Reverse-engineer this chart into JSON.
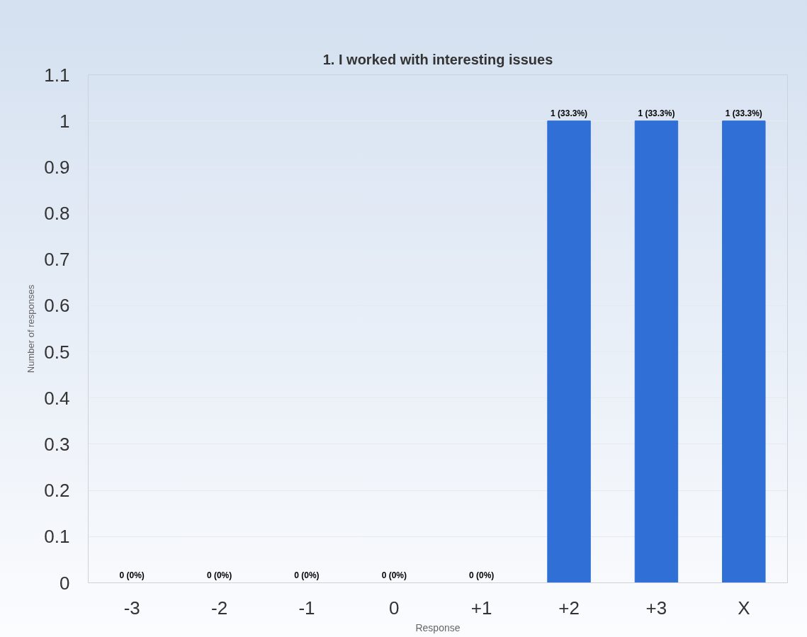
{
  "chart_data": {
    "type": "bar",
    "title": "1. I worked with interesting issues",
    "xlabel": "Response",
    "ylabel": "Number of responses",
    "categories": [
      "-3",
      "-2",
      "-1",
      "0",
      "+1",
      "+2",
      "+3",
      "X"
    ],
    "values": [
      0,
      0,
      0,
      0,
      0,
      1,
      1,
      1
    ],
    "value_labels": [
      "0 (0%)",
      "0 (0%)",
      "0 (0%)",
      "0 (0%)",
      "0 (0%)",
      "1 (33.3%)",
      "1 (33.3%)",
      "1 (33.3%)"
    ],
    "color": "#2f6fd6",
    "ylim": [
      0,
      1.1
    ],
    "yticks": [
      0,
      0.1,
      0.2,
      0.3,
      0.4,
      0.5,
      0.6,
      0.7,
      0.8,
      0.9,
      1,
      1.1
    ],
    "grid": "y"
  }
}
